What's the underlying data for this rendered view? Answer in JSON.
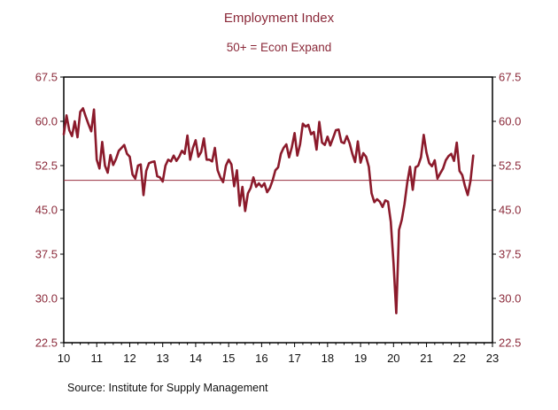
{
  "chart_data": {
    "type": "line",
    "title": "Employment Index",
    "subtitle": "50+ = Econ Expand",
    "source": "Source:  Institute for Supply Management",
    "xlabel": "",
    "ylabel": "",
    "x_ticks": [
      "10",
      "11",
      "12",
      "13",
      "14",
      "15",
      "16",
      "17",
      "18",
      "19",
      "20",
      "21",
      "22",
      "23"
    ],
    "x_range": [
      10,
      23
    ],
    "y_ticks": [
      "67.5",
      "60.0",
      "52.5",
      "45.0",
      "37.5",
      "30.0",
      "22.5"
    ],
    "y_range": [
      22.5,
      67.5
    ],
    "reference_line": {
      "value": 50,
      "label": "50+ = Econ Expand"
    },
    "colors": {
      "series": "#8b1a2b",
      "reference": "#9a3040",
      "axis_label": "#8b2a3a"
    },
    "grid": false,
    "legend": "none",
    "series": [
      {
        "name": "ISM Employment Index",
        "start": "2010-01",
        "frequency": "monthly",
        "values": [
          57.8,
          61.0,
          58.5,
          57.5,
          60.0,
          57.3,
          61.6,
          62.2,
          60.8,
          59.5,
          58.3,
          62.0,
          53.5,
          52.0,
          56.5,
          52.5,
          51.3,
          54.3,
          52.6,
          53.6,
          55.0,
          55.5,
          56.0,
          54.5,
          54.0,
          51.0,
          50.3,
          52.5,
          52.7,
          47.5,
          51.6,
          52.9,
          53.1,
          53.2,
          50.7,
          50.5,
          49.8,
          52.5,
          53.5,
          53.2,
          54.2,
          53.3,
          54.0,
          55.0,
          54.5,
          57.6,
          53.5,
          55.5,
          56.8,
          54.0,
          54.8,
          57.1,
          53.5,
          53.5,
          53.2,
          55.5,
          51.7,
          50.5,
          49.7,
          52.5,
          53.5,
          52.7,
          49.0,
          51.7,
          45.7,
          48.9,
          44.8,
          47.8,
          48.7,
          50.5,
          48.9,
          49.5,
          48.9,
          49.5,
          48.0,
          48.7,
          50.0,
          51.7,
          52.2,
          54.5,
          55.5,
          56.1,
          53.9,
          55.6,
          58.0,
          54.2,
          56.1,
          59.6,
          59.1,
          59.4,
          57.8,
          58.2,
          55.2,
          59.9,
          56.4,
          56.0,
          57.4,
          55.9,
          57.2,
          58.5,
          58.6,
          56.5,
          56.3,
          57.5,
          56.3,
          54.5,
          53.1,
          56.6,
          53.0,
          54.6,
          54.0,
          52.3,
          47.8,
          46.3,
          46.8,
          46.4,
          45.5,
          46.6,
          46.4,
          43.0,
          36.0,
          27.5,
          41.6,
          43.3,
          46.0,
          49.6,
          52.3,
          48.4,
          52.2,
          52.5,
          53.9,
          57.7,
          54.7,
          52.9,
          52.4,
          53.4,
          50.3,
          51.2,
          52.0,
          53.4,
          54.1,
          54.5,
          53.3,
          56.4,
          51.6,
          50.9,
          49.0,
          47.5,
          49.9,
          54.2
        ]
      }
    ]
  }
}
